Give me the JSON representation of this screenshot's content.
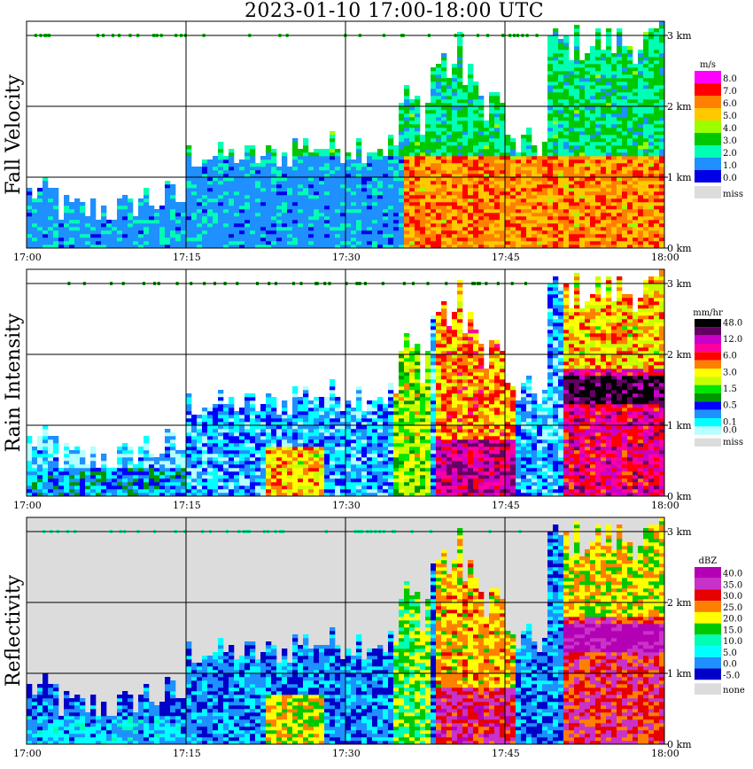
{
  "title": "2023-01-10   17:00-18:00 UTC",
  "chart_data": [
    {
      "type": "heatmap",
      "ylabel": "Fall Velocity",
      "unit": "m/s",
      "x_ticks": [
        "17:00",
        "17:15",
        "17:30",
        "17:45",
        "18:00"
      ],
      "y_ticks": [
        "0 km",
        "1 km",
        "2 km",
        "3 km"
      ],
      "ylim": [
        0,
        3.2
      ],
      "xlim_minutes": [
        0,
        60
      ],
      "colorbar": [
        {
          "label": "8.0",
          "color": "#ff00ff"
        },
        {
          "label": "7.0",
          "color": "#ff0000"
        },
        {
          "label": "6.0",
          "color": "#ff8000"
        },
        {
          "label": "5.0",
          "color": "#ffc800"
        },
        {
          "label": "4.0",
          "color": "#9bff00"
        },
        {
          "label": "3.0",
          "color": "#00c800"
        },
        {
          "label": "2.0",
          "color": "#00ffb4"
        },
        {
          "label": "1.0",
          "color": "#1e90ff"
        },
        {
          "label": "0.0",
          "color": "#0000e6"
        },
        {
          "label": "miss",
          "color": "#dcdcdc"
        }
      ]
    },
    {
      "type": "heatmap",
      "ylabel": "Rain Intensity",
      "unit": "mm/hr",
      "x_ticks": [
        "17:00",
        "17:15",
        "17:30",
        "17:45",
        "18:00"
      ],
      "y_ticks": [
        "0 km",
        "1 km",
        "2 km",
        "3 km"
      ],
      "ylim": [
        0,
        3.2
      ],
      "xlim_minutes": [
        0,
        60
      ],
      "colorbar": [
        {
          "label": "48.0",
          "color": "#000000"
        },
        {
          "label": "",
          "color": "#640064"
        },
        {
          "label": "12.0",
          "color": "#c800c8"
        },
        {
          "label": "",
          "color": "#ff00a0"
        },
        {
          "label": "6.0",
          "color": "#ff0000"
        },
        {
          "label": "",
          "color": "#ff8000"
        },
        {
          "label": "3.0",
          "color": "#ffff00"
        },
        {
          "label": "",
          "color": "#c8ff00"
        },
        {
          "label": "1.5",
          "color": "#00e600"
        },
        {
          "label": "",
          "color": "#009600"
        },
        {
          "label": "0.5",
          "color": "#0000ff"
        },
        {
          "label": "",
          "color": "#1e90ff"
        },
        {
          "label": "0.1",
          "color": "#00ffff"
        },
        {
          "label": "0.0",
          "color": "#b4ffff"
        },
        {
          "label": "miss",
          "color": "#dcdcdc"
        }
      ]
    },
    {
      "type": "heatmap",
      "ylabel": "Reflectivity",
      "unit": "dBZ",
      "x_ticks": [
        "17:00",
        "17:15",
        "17:30",
        "17:45",
        "18:00"
      ],
      "y_ticks": [
        "0 km",
        "1 km",
        "2 km",
        "3 km"
      ],
      "ylim": [
        0,
        3.2
      ],
      "xlim_minutes": [
        0,
        60
      ],
      "colorbar": [
        {
          "label": "40.0",
          "color": "#b400b4"
        },
        {
          "label": "35.0",
          "color": "#c832c8"
        },
        {
          "label": "30.0",
          "color": "#e60000"
        },
        {
          "label": "25.0",
          "color": "#ff8000"
        },
        {
          "label": "20.0",
          "color": "#ffff00"
        },
        {
          "label": "15.0",
          "color": "#00c800"
        },
        {
          "label": "10.0",
          "color": "#00ffb4"
        },
        {
          "label": "5.0",
          "color": "#00ffff"
        },
        {
          "label": "0.0",
          "color": "#1e90ff"
        },
        {
          "label": "-5.0",
          "color": "#0000c8"
        },
        {
          "label": "none",
          "color": "#dcdcdc"
        }
      ]
    }
  ]
}
